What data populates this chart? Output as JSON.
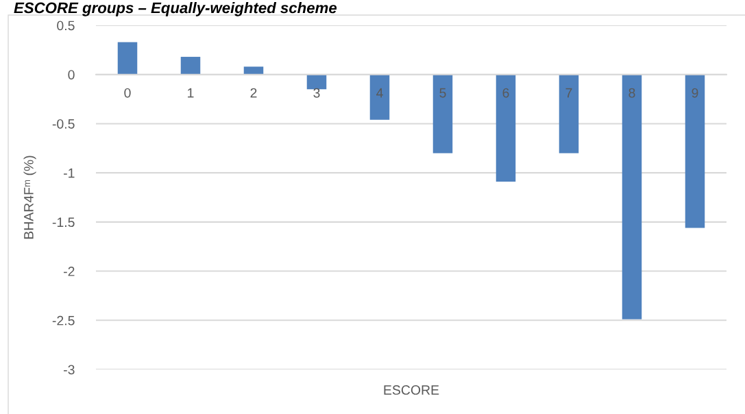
{
  "chart_data": {
    "type": "bar",
    "title": "ESCORE groups – Equally-weighted scheme",
    "xlabel": "ESCORE",
    "ylabel": "BHAR4Fᵐ (%)",
    "categories": [
      "0",
      "1",
      "2",
      "3",
      "4",
      "5",
      "6",
      "7",
      "8",
      "9"
    ],
    "values": [
      0.33,
      0.18,
      0.08,
      -0.15,
      -0.46,
      -0.8,
      -1.09,
      -0.8,
      -2.49,
      -1.56
    ],
    "color": "#4f81bd",
    "ylim": [
      -3,
      0.5
    ],
    "yticks": [
      {
        "value": -3,
        "label": "-3"
      },
      {
        "value": -2.5,
        "label": "-2.5"
      },
      {
        "value": -2,
        "label": "-2"
      },
      {
        "value": -1.5,
        "label": "-1.5"
      },
      {
        "value": -1,
        "label": "-1"
      },
      {
        "value": -0.5,
        "label": "-0.5"
      },
      0,
      0.5
    ],
    "grid": "y",
    "legend": false
  }
}
